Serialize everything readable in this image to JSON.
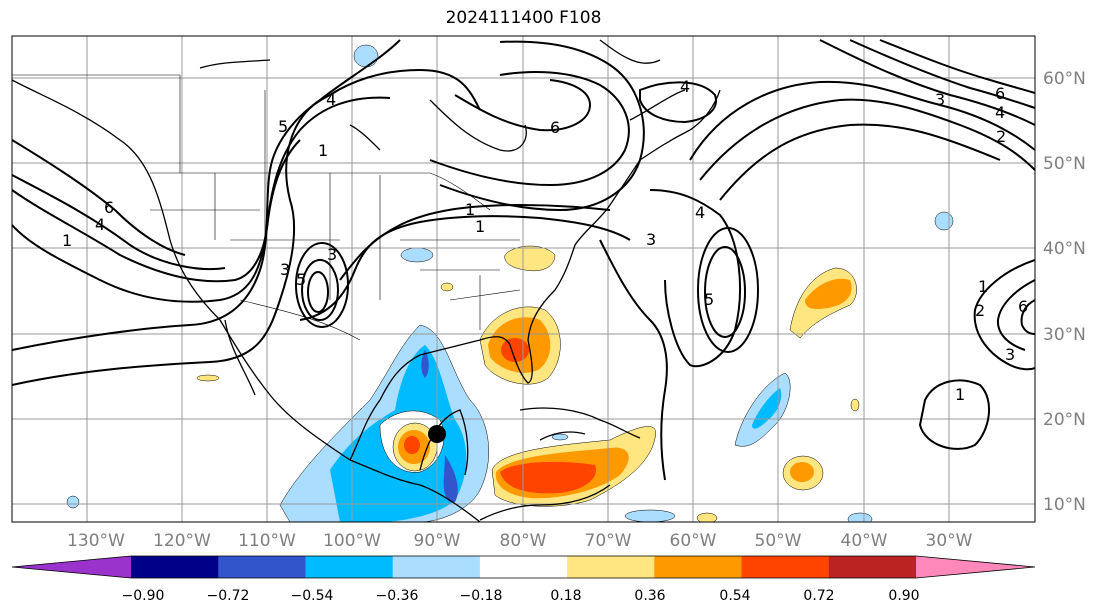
{
  "title": "2024111400 F108",
  "map": {
    "longitude_labels": [
      "130°W",
      "120°W",
      "110°W",
      "100°W",
      "90°W",
      "80°W",
      "70°W",
      "60°W",
      "50°W",
      "40°W",
      "30°W"
    ],
    "latitude_labels": [
      "60°N",
      "50°N",
      "40°N",
      "30°N",
      "20°N",
      "10°N"
    ],
    "contour_labels": [
      "1",
      "4",
      "5",
      "6",
      "1",
      "5",
      "3",
      "1",
      "6",
      "4",
      "3",
      "1",
      "5",
      "4",
      "3",
      "6",
      "4",
      "2",
      "1",
      "3",
      "6",
      "3",
      "4",
      "2",
      "1"
    ],
    "marker": "storm-center-dot",
    "colors": {
      "contour": "#000000",
      "grid": "#999999",
      "coast": "#000000"
    }
  },
  "colorbar": {
    "ticks": [
      "−0.90",
      "−0.72",
      "−0.54",
      "−0.36",
      "−0.18",
      "0.18",
      "0.36",
      "0.54",
      "0.72",
      "0.90"
    ],
    "bins": [
      {
        "color": "#9933cc",
        "range": "< -0.90"
      },
      {
        "color": "#000088",
        "range": "-0.90 to -0.72"
      },
      {
        "color": "#3355cc",
        "range": "-0.72 to -0.54"
      },
      {
        "color": "#00bbff",
        "range": "-0.54 to -0.36"
      },
      {
        "color": "#aaddff",
        "range": "-0.36 to -0.18"
      },
      {
        "color": "#ffffff",
        "range": "-0.18 to 0.18"
      },
      {
        "color": "#ffe680",
        "range": "0.18 to 0.36"
      },
      {
        "color": "#ff9900",
        "range": "0.36 to 0.54"
      },
      {
        "color": "#ff4400",
        "range": "0.54 to 0.72"
      },
      {
        "color": "#bb2222",
        "range": "0.72 to 0.90"
      },
      {
        "color": "#ff88bb",
        "range": "> 0.90"
      }
    ]
  }
}
